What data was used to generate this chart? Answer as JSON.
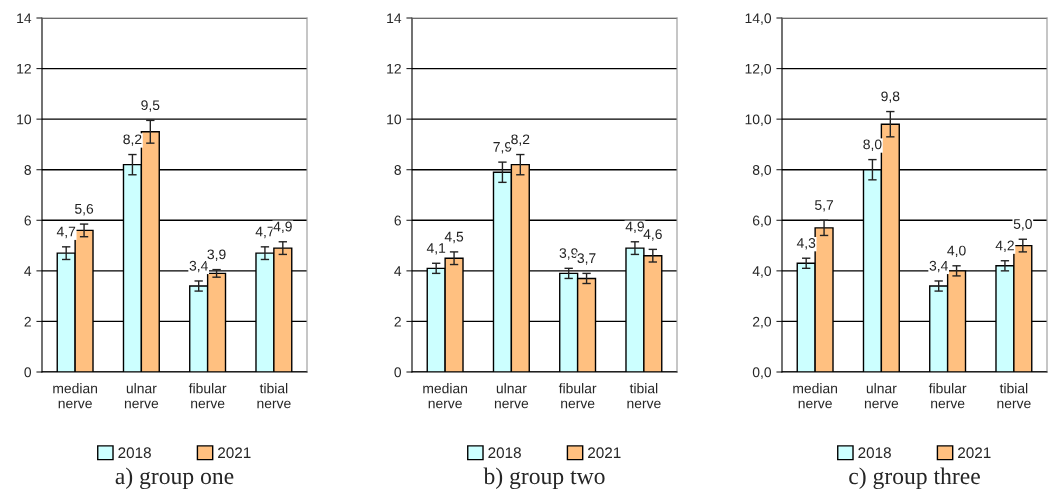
{
  "chart_data": [
    {
      "type": "bar",
      "title": "a) group one",
      "categories": [
        "median\nnerve",
        "ulnar\nnerve",
        "fibular\nnerve",
        "tibial\nnerve"
      ],
      "ylim": [
        0,
        14
      ],
      "yticks": [
        0,
        2,
        4,
        6,
        8,
        10,
        12,
        14
      ],
      "grid": "y",
      "legend": "bottom",
      "series": [
        {
          "name": "2018",
          "color": "#ccffff",
          "values": [
            4.7,
            8.2,
            3.4,
            4.7
          ],
          "errors": [
            0.25,
            0.4,
            0.2,
            0.25
          ],
          "value_labels": [
            "4,7",
            "8,2",
            "3,4",
            "4,7"
          ]
        },
        {
          "name": "2021",
          "color": "#ffc080",
          "values": [
            5.6,
            9.5,
            3.9,
            4.9
          ],
          "errors": [
            0.25,
            0.45,
            0.15,
            0.25
          ],
          "value_labels": [
            "5,6",
            "9,5",
            "3,9",
            "4,9"
          ]
        }
      ]
    },
    {
      "type": "bar",
      "title": "b) group two",
      "categories": [
        "median\nnerve",
        "ulnar\nnerve",
        "fibular\nnerve",
        "tibial\nnerve"
      ],
      "ylim": [
        0,
        14
      ],
      "yticks": [
        0,
        2,
        4,
        6,
        8,
        10,
        12,
        14
      ],
      "grid": "y",
      "legend": "bottom",
      "series": [
        {
          "name": "2018",
          "color": "#ccffff",
          "values": [
            4.1,
            7.9,
            3.9,
            4.9
          ],
          "errors": [
            0.2,
            0.4,
            0.2,
            0.25
          ],
          "value_labels": [
            "4,1",
            "7,9",
            "3,9",
            "4,9"
          ]
        },
        {
          "name": "2021",
          "color": "#ffc080",
          "values": [
            4.5,
            8.2,
            3.7,
            4.6
          ],
          "errors": [
            0.25,
            0.4,
            0.2,
            0.25
          ],
          "value_labels": [
            "4,5",
            "8,2",
            "3,7",
            "4,6"
          ]
        }
      ]
    },
    {
      "type": "bar",
      "title": "c) group three",
      "categories": [
        "median\nnerve",
        "ulnar\nnerve",
        "fibular\nnerve",
        "tibial\nnerve"
      ],
      "ylim": [
        0,
        14
      ],
      "yticks": [
        {
          "value": 0,
          "label": "0,0"
        },
        {
          "value": 2,
          "label": "2,0"
        },
        {
          "value": 4,
          "label": "4,0"
        },
        {
          "value": 6,
          "label": "6,0"
        },
        {
          "value": 8,
          "label": "8,0"
        },
        {
          "value": 10,
          "label": "10,0"
        },
        {
          "value": 12,
          "label": "12,0"
        },
        {
          "value": 14,
          "label": "14,0"
        }
      ],
      "grid": "y",
      "legend": "bottom",
      "series": [
        {
          "name": "2018",
          "color": "#ccffff",
          "values": [
            4.3,
            8.0,
            3.4,
            4.2
          ],
          "errors": [
            0.2,
            0.4,
            0.2,
            0.2
          ],
          "value_labels": [
            "4,3",
            "8,0",
            "3,4",
            "4,2"
          ]
        },
        {
          "name": "2021",
          "color": "#ffc080",
          "values": [
            5.7,
            9.8,
            4.0,
            5.0
          ],
          "errors": [
            0.3,
            0.5,
            0.2,
            0.25
          ],
          "value_labels": [
            "5,7",
            "9,8",
            "4,0",
            "5,0"
          ]
        }
      ]
    }
  ]
}
